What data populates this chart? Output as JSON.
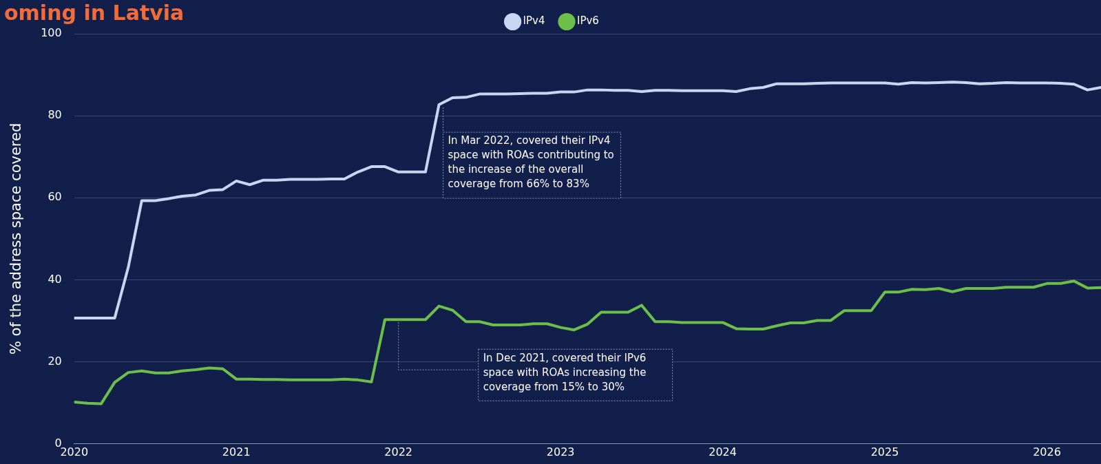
{
  "chart_data": {
    "type": "line",
    "title": "oming in Latvia",
    "ylabel": "% of the address space covered",
    "xlim": [
      "2020",
      "2026-05"
    ],
    "xticks": [
      "2020",
      "2021",
      "2022",
      "2023",
      "2024",
      "2025",
      "2026"
    ],
    "ylim": [
      0,
      100
    ],
    "yticks": [
      0,
      20,
      40,
      60,
      80,
      100
    ],
    "grid": "y",
    "legend": "top",
    "marker": "none",
    "line_style": "solid",
    "x": [
      "2020-01",
      "2020-02",
      "2020-03",
      "2020-04",
      "2020-05",
      "2020-06",
      "2020-07",
      "2020-08",
      "2020-09",
      "2020-10",
      "2020-11",
      "2020-12",
      "2021-01",
      "2021-02",
      "2021-03",
      "2021-04",
      "2021-05",
      "2021-06",
      "2021-07",
      "2021-08",
      "2021-09",
      "2021-10",
      "2021-11",
      "2021-12",
      "2022-01",
      "2022-02",
      "2022-03",
      "2022-04",
      "2022-05",
      "2022-06",
      "2022-07",
      "2022-08",
      "2022-09",
      "2022-10",
      "2022-11",
      "2022-12",
      "2023-01",
      "2023-02",
      "2023-03",
      "2023-04",
      "2023-05",
      "2023-06",
      "2023-07",
      "2023-08",
      "2023-09",
      "2023-10",
      "2023-11",
      "2023-12",
      "2024-01",
      "2024-02",
      "2024-03",
      "2024-04",
      "2024-05",
      "2024-06",
      "2024-07",
      "2024-08",
      "2024-09",
      "2024-10",
      "2024-11",
      "2024-12",
      "2025-01",
      "2025-02",
      "2025-03",
      "2025-04",
      "2025-05",
      "2025-06",
      "2025-07",
      "2025-08",
      "2025-09",
      "2025-10",
      "2025-11",
      "2025-12",
      "2026-01",
      "2026-02",
      "2026-03",
      "2026-04",
      "2026-05"
    ],
    "series": [
      {
        "name": "IPv4",
        "color": "#c9d6f2",
        "values": [
          30.7,
          30.7,
          30.7,
          30.7,
          43,
          59.3,
          59.3,
          59.8,
          60.4,
          60.7,
          61.8,
          62,
          64.1,
          63.2,
          64.3,
          64.3,
          64.5,
          64.5,
          64.5,
          64.6,
          64.6,
          66.3,
          67.6,
          67.6,
          66.3,
          66.3,
          66.3,
          82.7,
          84.4,
          84.5,
          85.3,
          85.3,
          85.3,
          85.4,
          85.5,
          85.5,
          85.8,
          85.8,
          86.3,
          86.3,
          86.2,
          86.2,
          85.9,
          86.2,
          86.2,
          86.1,
          86.1,
          86.1,
          86.1,
          85.9,
          86.6,
          86.9,
          87.8,
          87.8,
          87.8,
          87.9,
          88,
          88,
          88,
          88,
          88,
          87.7,
          88.1,
          88,
          88.1,
          88.2,
          88.1,
          87.8,
          87.9,
          88.1,
          88,
          88,
          88,
          87.9,
          87.7,
          86.3,
          86.9
        ]
      },
      {
        "name": "IPv6",
        "color": "#6cc04a",
        "values": [
          10.2,
          9.9,
          9.8,
          15,
          17.4,
          17.8,
          17.3,
          17.3,
          17.8,
          18.1,
          18.5,
          18.3,
          15.8,
          15.8,
          15.7,
          15.7,
          15.6,
          15.6,
          15.6,
          15.6,
          15.8,
          15.6,
          15.1,
          30.3,
          30.3,
          30.3,
          30.3,
          33.6,
          32.6,
          29.8,
          29.8,
          29,
          29,
          29,
          29.3,
          29.3,
          28.4,
          27.8,
          29.2,
          32.1,
          32.1,
          32.1,
          33.8,
          29.8,
          29.8,
          29.6,
          29.6,
          29.6,
          29.6,
          28.1,
          28,
          28,
          28.8,
          29.5,
          29.5,
          30.1,
          30.1,
          32.5,
          32.5,
          32.5,
          37,
          37,
          37.7,
          37.6,
          37.9,
          37.1,
          37.9,
          37.9,
          37.9,
          38.2,
          38.2,
          38.2,
          39.1,
          39.1,
          39.7,
          38,
          38.1
        ]
      }
    ],
    "annotations": [
      {
        "text": "In Mar 2022, covered their IPv4 space with ROAs contributing to the increase of the overall coverage from 66% to 83%",
        "x": "2022-04",
        "y": 82.7
      },
      {
        "text": "In Dec 2021, covered their IPv6 space with ROAs increasing the coverage from 15% to 30%",
        "x": "2022-01",
        "y": 30.3
      }
    ]
  }
}
